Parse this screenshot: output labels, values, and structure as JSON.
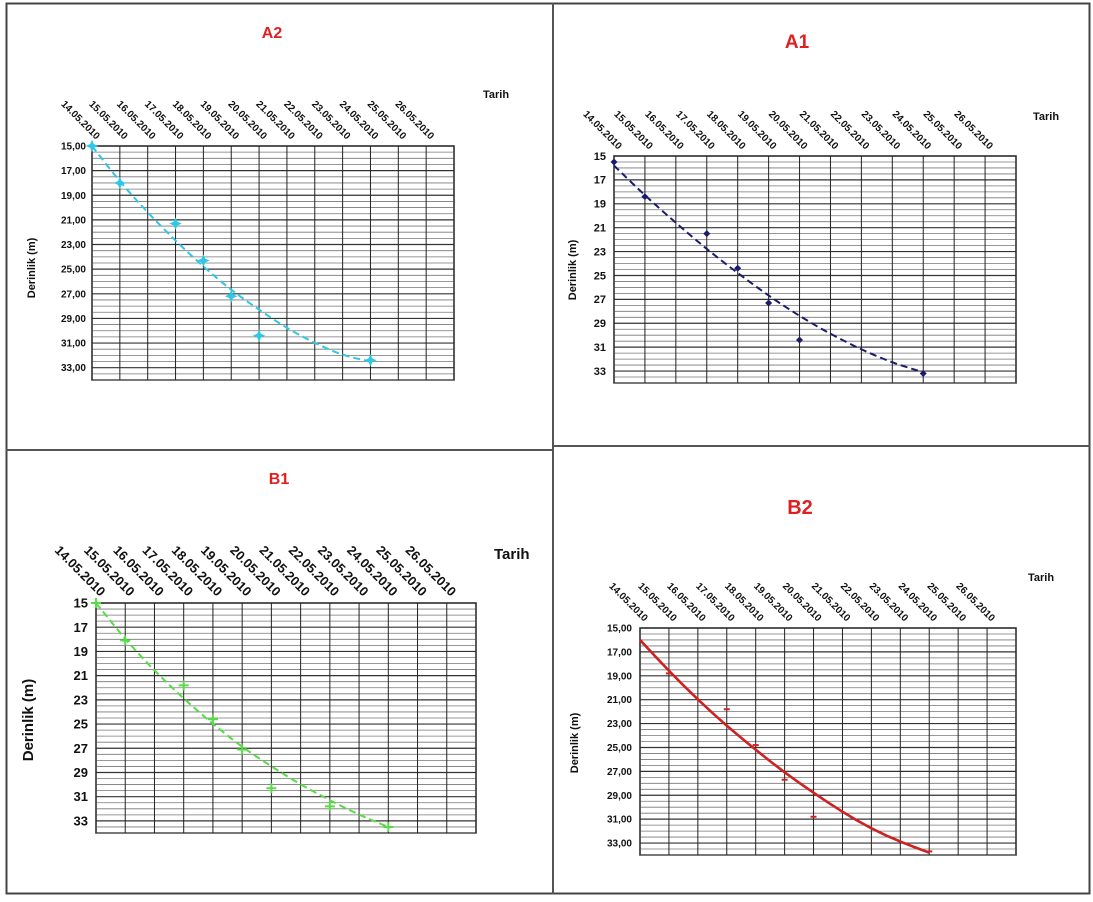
{
  "panels_layout": "2x2 grid",
  "x_tick_labels": [
    "14.05.2010",
    "15.05.2010",
    "16.05.2010",
    "17.05.2010",
    "18.05.2010",
    "19.05.2010",
    "20.05.2010",
    "21.05.2010",
    "22.05.2010",
    "23.05.2010",
    "24.05.2010",
    "25.05.2010",
    "26.05.2010"
  ],
  "chart_data": [
    {
      "panel": "A2",
      "type": "scatter",
      "title": "A2",
      "title_color": "#e02020",
      "xlabel": "Tarih",
      "ylabel": "Derinlik (m)",
      "x_axis": "top",
      "y_inverted": true,
      "ylim": [
        15,
        34
      ],
      "y_ticks": [
        "15,00",
        "17,00",
        "19,00",
        "21,00",
        "23,00",
        "25,00",
        "27,00",
        "29,00",
        "31,00",
        "33,00"
      ],
      "grid": true,
      "color": "#2ec7e6",
      "point_marker": "star",
      "trend": "dashed",
      "points": [
        {
          "x": "14.05.2010",
          "y": 15.0
        },
        {
          "x": "15.05.2010",
          "y": 18.0
        },
        {
          "x": "17.05.2010",
          "y": 21.3
        },
        {
          "x": "18.05.2010",
          "y": 24.3
        },
        {
          "x": "19.05.2010",
          "y": 27.2
        },
        {
          "x": "20.05.2010",
          "y": 30.4
        },
        {
          "x": "24.05.2010",
          "y": 32.4
        }
      ],
      "trend_points": [
        {
          "x": "14.05.2010",
          "y": 15.0
        },
        {
          "x": "15.05.2010",
          "y": 17.9
        },
        {
          "x": "16.05.2010",
          "y": 20.4
        },
        {
          "x": "17.05.2010",
          "y": 22.7
        },
        {
          "x": "18.05.2010",
          "y": 24.8
        },
        {
          "x": "19.05.2010",
          "y": 26.7
        },
        {
          "x": "20.05.2010",
          "y": 28.3
        },
        {
          "x": "21.05.2010",
          "y": 29.8
        },
        {
          "x": "22.05.2010",
          "y": 31.0
        },
        {
          "x": "23.05.2010",
          "y": 32.0
        },
        {
          "x": "24.05.2010",
          "y": 32.5
        }
      ]
    },
    {
      "panel": "A1",
      "type": "scatter",
      "title": "A1",
      "title_color": "#e02020",
      "xlabel": "Tarih",
      "ylabel": "Derinlik (m)",
      "x_axis": "top",
      "y_inverted": true,
      "ylim": [
        15,
        34
      ],
      "y_ticks": [
        "15",
        "17",
        "19",
        "21",
        "23",
        "25",
        "27",
        "29",
        "31",
        "33"
      ],
      "grid": true,
      "color": "#1c1c6e",
      "point_marker": "diamond",
      "trend": "dashed",
      "points": [
        {
          "x": "14.05.2010",
          "y": 15.5
        },
        {
          "x": "15.05.2010",
          "y": 18.4
        },
        {
          "x": "17.05.2010",
          "y": 21.5
        },
        {
          "x": "18.05.2010",
          "y": 24.4
        },
        {
          "x": "19.05.2010",
          "y": 27.3
        },
        {
          "x": "20.05.2010",
          "y": 30.4
        },
        {
          "x": "24.05.2010",
          "y": 33.2
        }
      ],
      "trend_points": [
        {
          "x": "14.05.2010",
          "y": 15.8
        },
        {
          "x": "15.05.2010",
          "y": 18.3
        },
        {
          "x": "16.05.2010",
          "y": 20.6
        },
        {
          "x": "17.05.2010",
          "y": 22.8
        },
        {
          "x": "18.05.2010",
          "y": 24.8
        },
        {
          "x": "19.05.2010",
          "y": 26.7
        },
        {
          "x": "20.05.2010",
          "y": 28.4
        },
        {
          "x": "21.05.2010",
          "y": 29.9
        },
        {
          "x": "22.05.2010",
          "y": 31.2
        },
        {
          "x": "23.05.2010",
          "y": 32.3
        },
        {
          "x": "24.05.2010",
          "y": 33.1
        }
      ]
    },
    {
      "panel": "B1",
      "type": "scatter",
      "title": "B1",
      "title_color": "#e02020",
      "xlabel": "Tarih",
      "ylabel": "Derinlik (m)",
      "x_axis": "top",
      "y_inverted": true,
      "ylim": [
        15,
        34
      ],
      "y_ticks": [
        "15",
        "17",
        "19",
        "21",
        "23",
        "25",
        "27",
        "29",
        "31",
        "33"
      ],
      "grid": true,
      "color": "#55dd44",
      "point_marker": "plus",
      "trend": "dashed",
      "points": [
        {
          "x": "14.05.2010",
          "y": 15.0
        },
        {
          "x": "15.05.2010",
          "y": 18.1
        },
        {
          "x": "17.05.2010",
          "y": 21.8
        },
        {
          "x": "18.05.2010",
          "y": 24.6
        },
        {
          "x": "19.05.2010",
          "y": 27.1
        },
        {
          "x": "20.05.2010",
          "y": 30.3
        },
        {
          "x": "22.05.2010",
          "y": 31.8
        },
        {
          "x": "24.05.2010",
          "y": 33.5
        }
      ],
      "trend_points": [
        {
          "x": "14.05.2010",
          "y": 15.0
        },
        {
          "x": "15.05.2010",
          "y": 18.0
        },
        {
          "x": "16.05.2010",
          "y": 20.6
        },
        {
          "x": "17.05.2010",
          "y": 22.9
        },
        {
          "x": "18.05.2010",
          "y": 25.0
        },
        {
          "x": "19.05.2010",
          "y": 26.9
        },
        {
          "x": "20.05.2010",
          "y": 28.5
        },
        {
          "x": "21.05.2010",
          "y": 30.0
        },
        {
          "x": "22.05.2010",
          "y": 31.3
        },
        {
          "x": "23.05.2010",
          "y": 32.5
        },
        {
          "x": "24.05.2010",
          "y": 33.5
        }
      ]
    },
    {
      "panel": "B2",
      "type": "scatter",
      "title": "B2",
      "title_color": "#e02020",
      "xlabel": "Tarih",
      "ylabel": "Derinlik (m)",
      "x_axis": "top",
      "y_inverted": true,
      "ylim": [
        15,
        34
      ],
      "y_ticks": [
        "15,00",
        "17,00",
        "19,00",
        "21,00",
        "23,00",
        "25,00",
        "27,00",
        "29,00",
        "31,00",
        "33,00"
      ],
      "grid": true,
      "color": "#cc2222",
      "point_marker": "tick",
      "trend": "solid",
      "points": [
        {
          "x": "15.05.2010",
          "y": 18.8
        },
        {
          "x": "17.05.2010",
          "y": 21.8
        },
        {
          "x": "18.05.2010",
          "y": 24.8
        },
        {
          "x": "19.05.2010",
          "y": 27.7
        },
        {
          "x": "20.05.2010",
          "y": 30.8
        },
        {
          "x": "24.05.2010",
          "y": 33.7
        }
      ],
      "trend_points": [
        {
          "x": "14.05.2010",
          "y": 16.0
        },
        {
          "x": "15.05.2010",
          "y": 18.6
        },
        {
          "x": "16.05.2010",
          "y": 21.0
        },
        {
          "x": "17.05.2010",
          "y": 23.2
        },
        {
          "x": "18.05.2010",
          "y": 25.2
        },
        {
          "x": "19.05.2010",
          "y": 27.1
        },
        {
          "x": "20.05.2010",
          "y": 28.8
        },
        {
          "x": "21.05.2010",
          "y": 30.4
        },
        {
          "x": "22.05.2010",
          "y": 31.8
        },
        {
          "x": "23.05.2010",
          "y": 32.9
        },
        {
          "x": "24.05.2010",
          "y": 33.8
        }
      ]
    }
  ]
}
